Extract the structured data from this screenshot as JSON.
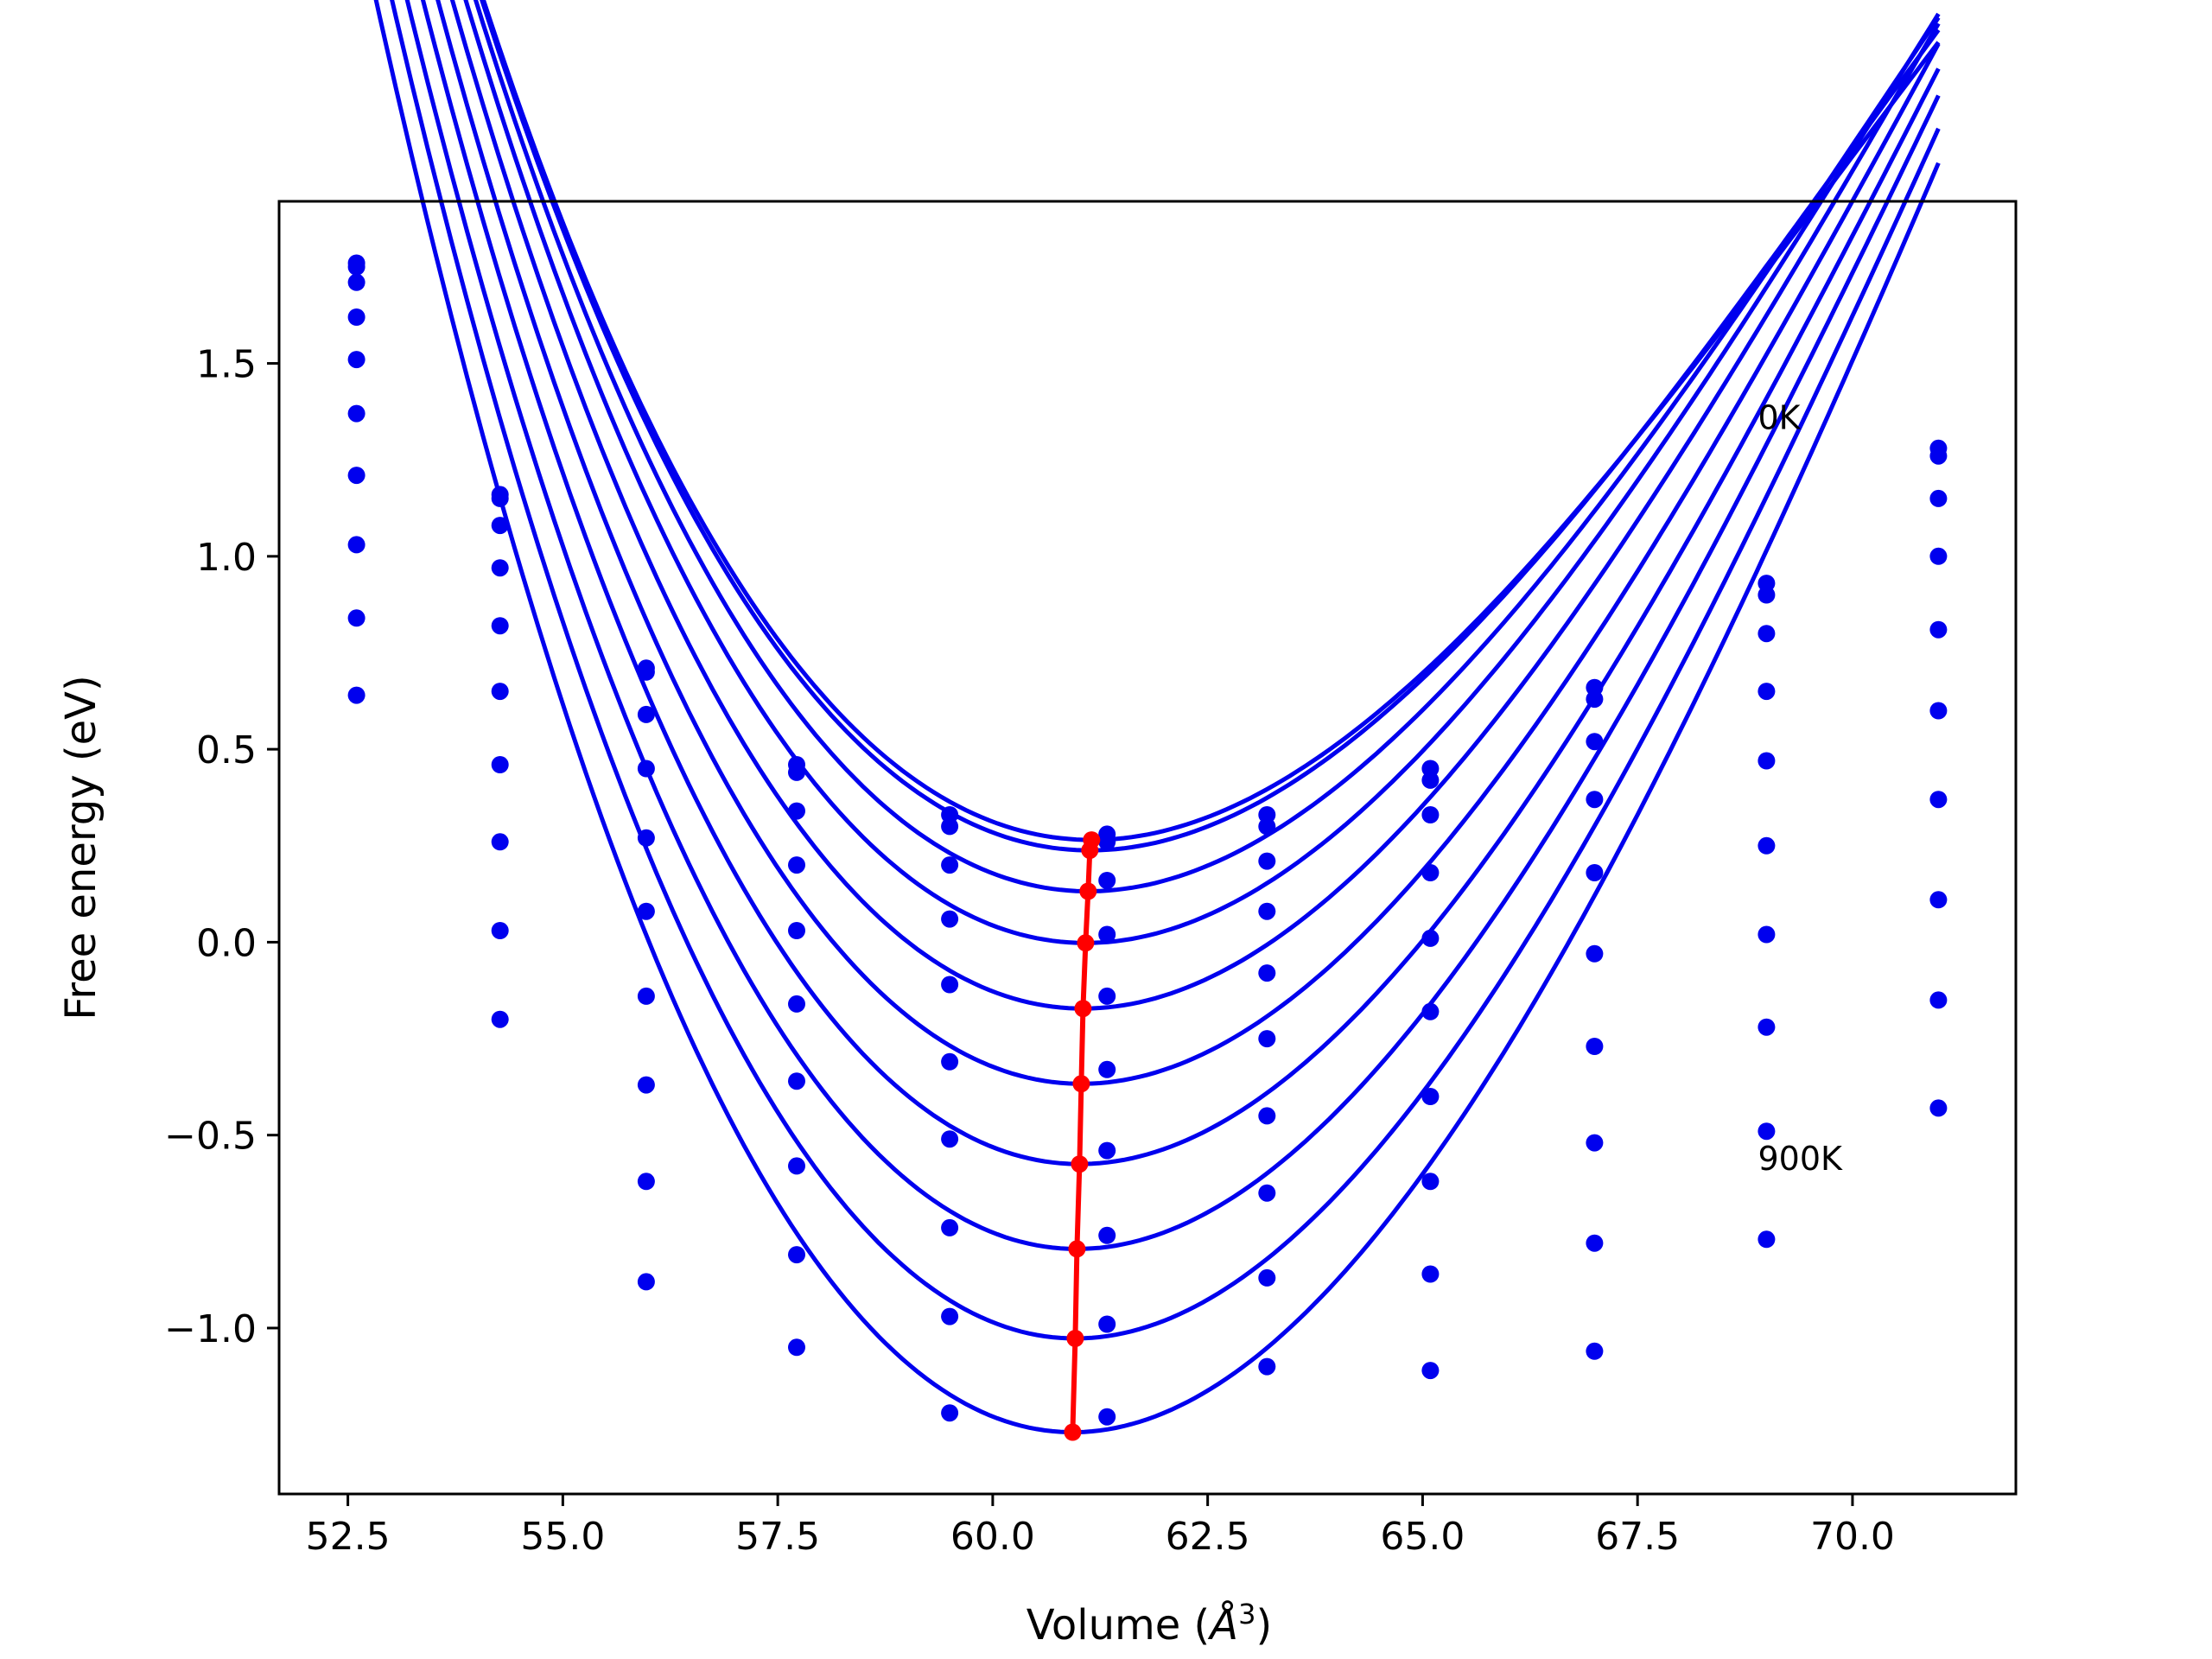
{
  "chart_data": {
    "type": "line",
    "title": "",
    "xlabel": "Volume (",
    "xlabel_symbol": "Å",
    "xlabel_exp": "3",
    "xlabel_close": ")",
    "ylabel": "Free energy (eV)",
    "xlim": [
      51.7,
      71.9
    ],
    "ylim": [
      -1.43,
      1.92
    ],
    "xticks": [
      52.5,
      55.0,
      57.5,
      60.0,
      62.5,
      65.0,
      67.5,
      70.0
    ],
    "xtick_labels": [
      "52.5",
      "55.0",
      "57.5",
      "60.0",
      "62.5",
      "65.0",
      "67.5",
      "70.0"
    ],
    "yticks": [
      -1.0,
      -0.5,
      0.0,
      0.5,
      1.0,
      1.5
    ],
    "ytick_labels": [
      "−1.0",
      "−0.5",
      "0.0",
      "0.5",
      "1.0",
      "1.5"
    ],
    "grid": false,
    "annotations": [
      {
        "text": "0K",
        "x": 68.9,
        "y": 1.33
      },
      {
        "text": "900K",
        "x": 68.9,
        "y": -0.59
      }
    ],
    "curve_color": "#0000ee",
    "point_color": "#0000ee",
    "minimum_color": "#ff0000",
    "volumes": [
      52.6,
      54.27,
      55.97,
      57.72,
      59.5,
      61.33,
      63.19,
      65.09,
      67.0,
      69.0,
      71.0
    ],
    "series": [
      {
        "values": [
          1.76,
          1.16,
          0.71,
          0.46,
          0.33,
          0.28,
          0.33,
          0.45,
          0.66,
          0.93,
          1.28
        ],
        "fit": {
          "e0": 0.265,
          "v0": 61.15,
          "b": 0.0128,
          "c": -0.0003
        }
      },
      {
        "values": [
          1.75,
          1.15,
          0.7,
          0.44,
          0.3,
          0.26,
          0.3,
          0.42,
          0.63,
          0.9,
          1.26
        ],
        "fit": {
          "e0": 0.238,
          "v0": 61.13,
          "b": 0.013,
          "c": -0.0003
        }
      },
      {
        "values": [
          1.71,
          1.08,
          0.59,
          0.34,
          0.2,
          0.16,
          0.21,
          0.33,
          0.52,
          0.8,
          1.15
        ],
        "fit": {
          "e0": 0.132,
          "v0": 61.11,
          "b": 0.0135,
          "c": -0.0003
        }
      },
      {
        "values": [
          1.62,
          0.97,
          0.45,
          0.2,
          0.06,
          0.02,
          0.08,
          0.18,
          0.37,
          0.65,
          1.0
        ],
        "fit": {
          "e0": -0.002,
          "v0": 61.08,
          "b": 0.014,
          "c": -0.0003
        }
      },
      {
        "values": [
          1.51,
          0.82,
          0.27,
          0.03,
          -0.11,
          -0.14,
          -0.08,
          0.01,
          0.18,
          0.47,
          0.81
        ],
        "fit": {
          "e0": -0.172,
          "v0": 61.05,
          "b": 0.0145,
          "c": -0.0003
        }
      },
      {
        "values": [
          1.37,
          0.65,
          0.08,
          -0.16,
          -0.31,
          -0.33,
          -0.25,
          -0.18,
          -0.03,
          0.25,
          0.6
        ],
        "fit": {
          "e0": -0.367,
          "v0": 61.03,
          "b": 0.015,
          "c": -0.0003
        }
      },
      {
        "values": [
          1.21,
          0.46,
          -0.14,
          -0.36,
          -0.51,
          -0.54,
          -0.45,
          -0.4,
          -0.27,
          0.02,
          0.37
        ],
        "fit": {
          "e0": -0.575,
          "v0": 61.01,
          "b": 0.0155,
          "c": -0.0003
        }
      },
      {
        "values": [
          1.03,
          0.26,
          -0.37,
          -0.58,
          -0.74,
          -0.76,
          -0.65,
          -0.62,
          -0.52,
          -0.22,
          0.11
        ],
        "fit": {
          "e0": -0.795,
          "v0": 60.98,
          "b": 0.016,
          "c": -0.0003
        }
      },
      {
        "values": [
          0.84,
          0.03,
          -0.62,
          -0.81,
          -0.97,
          -0.99,
          -0.87,
          -0.86,
          -0.78,
          -0.49,
          -0.15
        ],
        "fit": {
          "e0": -1.027,
          "v0": 60.96,
          "b": 0.0165,
          "c": -0.0003
        }
      },
      {
        "values": [
          0.64,
          -0.2,
          -0.88,
          -1.05,
          -1.22,
          -1.23,
          -1.1,
          -1.11,
          -1.06,
          -0.77,
          -0.43
        ],
        "fit": {
          "e0": -1.27,
          "v0": 60.93,
          "b": 0.017,
          "c": -0.0003
        }
      }
    ],
    "minima": {
      "x": [
        61.15,
        61.13,
        61.11,
        61.08,
        61.05,
        61.03,
        61.01,
        60.98,
        60.96,
        60.93
      ],
      "y": [
        0.265,
        0.238,
        0.132,
        -0.002,
        -0.172,
        -0.367,
        -0.575,
        -0.795,
        -1.027,
        -1.27
      ]
    }
  }
}
